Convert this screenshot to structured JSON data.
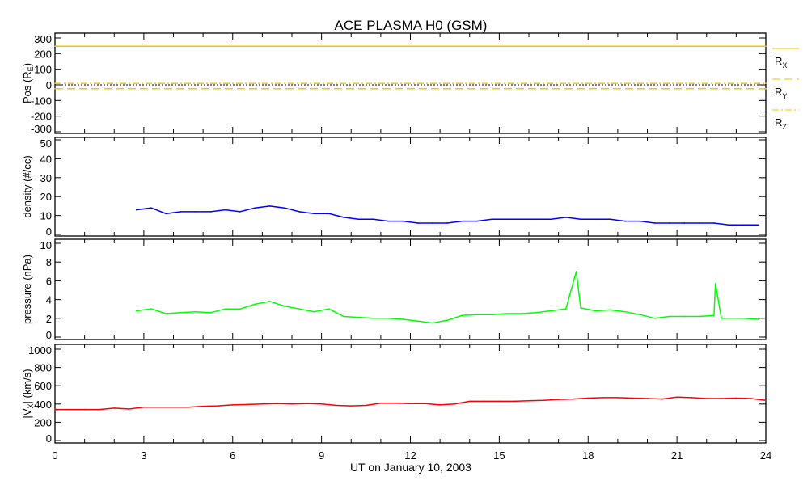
{
  "chart_data": {
    "title": "ACE PLASMA H0 (GSM)",
    "xlabel": "UT on January 10, 2003",
    "xlim": [
      0,
      24
    ],
    "xticks": [
      "0",
      "3",
      "6",
      "9",
      "12",
      "15",
      "18",
      "21",
      "24"
    ],
    "panels": [
      {
        "type": "line",
        "ylabel": "Pos (R",
        "ylabel_sub": "E",
        "ylabel_end": ")",
        "ylim": [
          -330,
          330
        ],
        "yticks": [
          "300",
          "200",
          "100",
          "0",
          "-100",
          "-200",
          "-300"
        ],
        "ytick_values": [
          300,
          200,
          100,
          0,
          -100,
          -200,
          -300
        ],
        "legend_placement": "right",
        "series": [
          {
            "name": "R",
            "sub": "X",
            "color": "#ffc000",
            "style": "solid",
            "x": [
              0,
              24
            ],
            "y": [
              247,
              247
            ]
          },
          {
            "name": "R",
            "sub": "Y",
            "color": "#ffc000",
            "style": "dash",
            "x": [
              0,
              24
            ],
            "y": [
              -25,
              -25
            ]
          },
          {
            "name": "R",
            "sub": "Z",
            "color": "#ffc000",
            "style": "dashdot",
            "x": [
              0,
              24
            ],
            "y": [
              10,
              10
            ]
          }
        ]
      },
      {
        "type": "line",
        "ylabel": "density (#/cc)",
        "ylim": [
          0,
          50
        ],
        "yticks": [
          "50",
          "40",
          "30",
          "20",
          "10",
          "0"
        ],
        "ytick_values": [
          50,
          40,
          30,
          20,
          10,
          0
        ],
        "series": [
          {
            "name": "density",
            "color": "#0000ff",
            "x": [
              2.75,
              3.25,
              3.75,
              4.25,
              4.75,
              5.25,
              5.75,
              6.25,
              6.75,
              7.25,
              7.75,
              8.25,
              8.75,
              9.25,
              9.75,
              10.25,
              10.75,
              11.25,
              11.75,
              12.25,
              12.75,
              13.25,
              13.75,
              14.25,
              14.75,
              15.25,
              15.75,
              16.25,
              16.75,
              17.25,
              17.75,
              18.25,
              18.75,
              19.25,
              19.75,
              20.25,
              20.75,
              21.25,
              21.75,
              22.25,
              22.75,
              23.25,
              23.75
            ],
            "y": [
              13,
              14,
              11,
              12,
              12,
              12,
              13,
              12,
              14,
              15,
              14,
              12,
              11,
              11,
              9,
              8,
              8,
              7,
              7,
              6,
              6,
              6,
              7,
              7,
              8,
              8,
              8,
              8,
              8,
              9,
              8,
              8,
              8,
              7,
              7,
              6,
              6,
              6,
              6,
              6,
              5,
              5,
              5
            ]
          }
        ]
      },
      {
        "type": "line",
        "ylabel": "pressure (nPa)",
        "ylim": [
          0,
          10
        ],
        "yticks": [
          "10",
          "8",
          "6",
          "4",
          "2",
          "0"
        ],
        "ytick_values": [
          10,
          8,
          6,
          4,
          2,
          0
        ],
        "series": [
          {
            "name": "pressure",
            "color": "#00ff00",
            "x": [
              2.75,
              3.25,
              3.75,
              4.25,
              4.75,
              5.25,
              5.75,
              6.25,
              6.75,
              7.25,
              7.75,
              8.25,
              8.75,
              9.25,
              9.75,
              10.25,
              10.75,
              11.25,
              11.75,
              12.25,
              12.75,
              13.25,
              13.75,
              14.25,
              14.75,
              15.25,
              15.75,
              16.25,
              16.75,
              17.25,
              17.6,
              17.75,
              18.25,
              18.75,
              19.25,
              19.75,
              20.25,
              20.75,
              21.25,
              21.75,
              22.25,
              22.3,
              22.5,
              23.25,
              23.75
            ],
            "y": [
              2.8,
              3.0,
              2.5,
              2.6,
              2.7,
              2.6,
              3.0,
              3.0,
              3.5,
              3.8,
              3.3,
              3.0,
              2.7,
              3.0,
              2.2,
              2.1,
              2.0,
              2.0,
              1.9,
              1.7,
              1.5,
              1.8,
              2.3,
              2.4,
              2.4,
              2.5,
              2.5,
              2.6,
              2.8,
              3.0,
              7.0,
              3.1,
              2.8,
              2.9,
              2.7,
              2.4,
              2.0,
              2.2,
              2.2,
              2.2,
              2.3,
              5.7,
              2.0,
              2.0,
              1.9
            ]
          }
        ]
      },
      {
        "type": "line",
        "ylabel": "|V",
        "ylabel_sub": "X",
        "ylabel_end": "| (km/s)",
        "ylim": [
          0,
          1000
        ],
        "yticks": [
          "1000",
          "800",
          "600",
          "400",
          "200",
          "0"
        ],
        "ytick_values": [
          1000,
          800,
          600,
          400,
          200,
          0
        ],
        "series": [
          {
            "name": "Vx",
            "color": "#ff0000",
            "x": [
              0,
              1,
              1.5,
              2,
              2.5,
              3,
              3.5,
              4,
              4.5,
              5,
              5.5,
              6,
              6.5,
              7,
              7.5,
              8,
              8.5,
              9,
              9.5,
              10,
              10.5,
              11,
              11.5,
              12,
              12.5,
              13,
              13.5,
              14,
              14.5,
              15,
              15.5,
              16,
              16.5,
              17,
              17.5,
              18,
              18.5,
              19,
              19.5,
              20,
              20.5,
              21,
              21.5,
              22,
              22.5,
              23,
              23.5,
              24
            ],
            "y": [
              340,
              340,
              340,
              355,
              345,
              365,
              365,
              365,
              365,
              375,
              380,
              390,
              395,
              400,
              405,
              400,
              405,
              400,
              385,
              380,
              385,
              410,
              410,
              405,
              405,
              390,
              400,
              430,
              430,
              430,
              430,
              435,
              440,
              450,
              455,
              465,
              470,
              470,
              465,
              460,
              455,
              475,
              470,
              460,
              460,
              465,
              460,
              440
            ]
          }
        ]
      }
    ]
  }
}
